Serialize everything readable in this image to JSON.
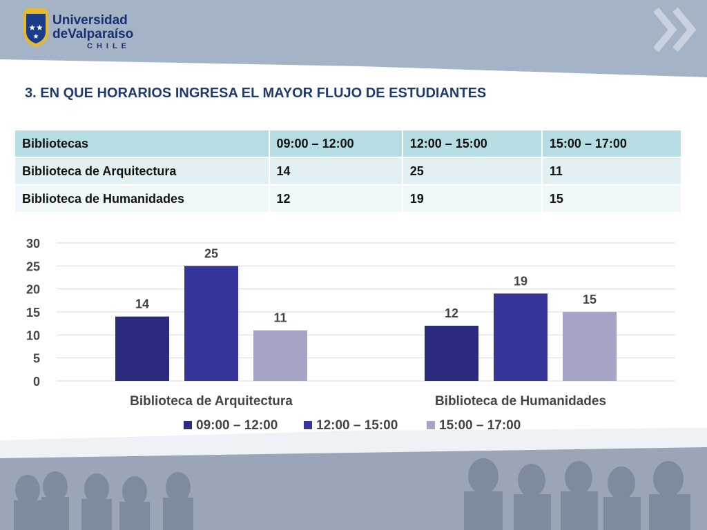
{
  "header": {
    "logo_line1": "Universidad",
    "logo_line2": "deValparaíso",
    "logo_line3": "CHILE"
  },
  "slide_title": "3.  EN QUE HORARIOS INGRESA EL MAYOR FLUJO DE ESTUDIANTES",
  "table": {
    "headers": [
      "Bibliotecas",
      "09:00 – 12:00",
      "12:00 – 15:00",
      "15:00 – 17:00"
    ],
    "rows": [
      [
        "Biblioteca de Arquitectura",
        "14",
        "25",
        "11"
      ],
      [
        "Biblioteca de Humanidades",
        "12",
        "19",
        "15"
      ]
    ]
  },
  "chart_data": {
    "type": "bar",
    "categories": [
      "Biblioteca de Arquitectura",
      "Biblioteca de Humanidades"
    ],
    "series": [
      {
        "name": "09:00 – 12:00",
        "values": [
          14,
          12
        ],
        "color": "#2a2a7e"
      },
      {
        "name": "12:00 – 15:00",
        "values": [
          25,
          19
        ],
        "color": "#35359a"
      },
      {
        "name": "15:00 – 17:00",
        "values": [
          11,
          15
        ],
        "color": "#a4a4c6"
      }
    ],
    "ylim": [
      0,
      30
    ],
    "yticks": [
      0,
      5,
      10,
      15,
      20,
      25,
      30
    ],
    "title": "",
    "xlabel": "",
    "ylabel": "",
    "legend": "bottom",
    "grid": true
  }
}
